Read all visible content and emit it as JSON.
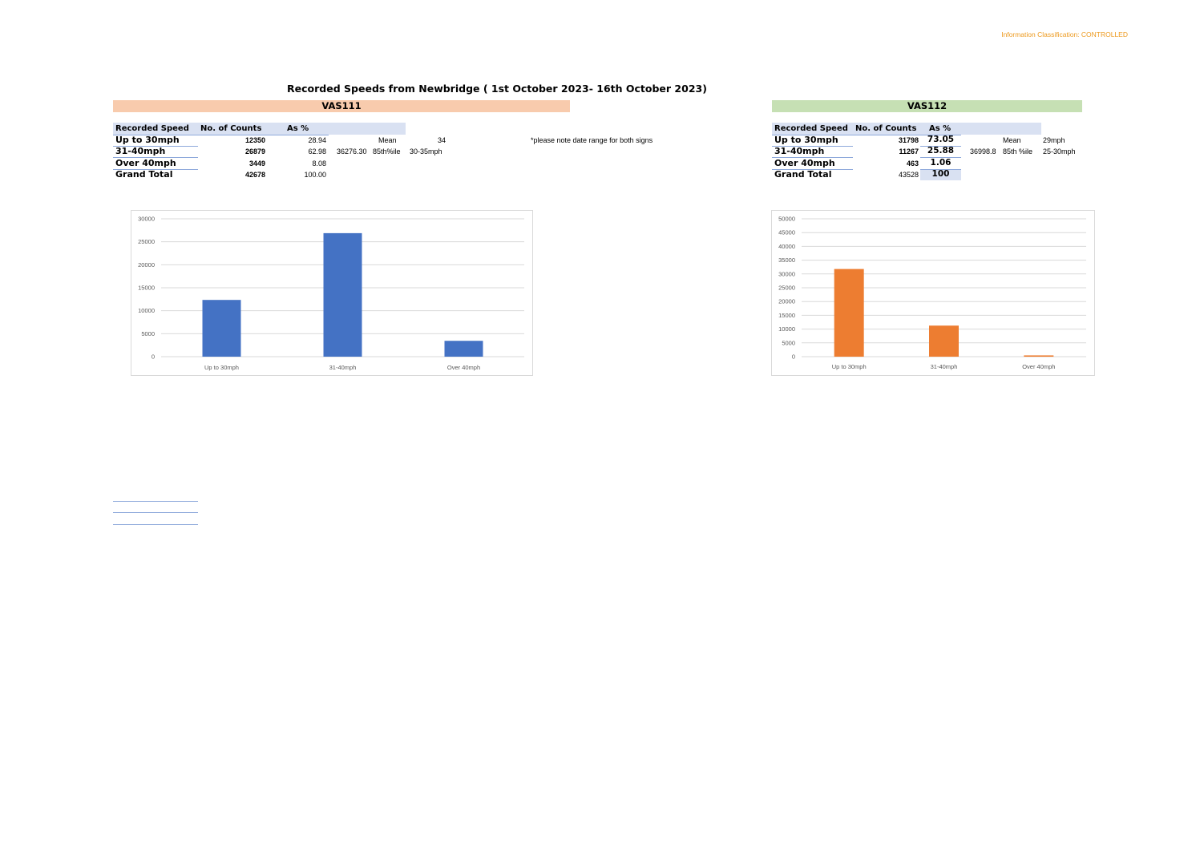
{
  "classification": "Information Classification: CONTROLLED",
  "title": "Recorded Speeds from Newbridge ( 1st October 2023- 16th October  2023)",
  "note": "*please note date range for both signs",
  "vas111": {
    "name": "VAS111",
    "band_color": "#F8CBAD",
    "headers": {
      "speed": "Recorded Speed",
      "counts": "No. of Counts",
      "pct": "As %"
    },
    "rows": [
      {
        "label": "Up to 30mph",
        "count": "12350",
        "pct": "28.94"
      },
      {
        "label": "31-40mph",
        "count": "26879",
        "pct": "62.98"
      },
      {
        "label": "Over 40mph",
        "count": "3449",
        "pct": "8.08"
      }
    ],
    "total": {
      "label": "Grand Total",
      "count": "42678",
      "pct": "100.00"
    },
    "stats": {
      "mean_label": "Mean",
      "mean_value": "34",
      "p85_raw": "36276.30",
      "p85_label": "85th%ile",
      "p85_value": "30-35mph"
    }
  },
  "vas112": {
    "name": "VAS112",
    "band_color": "#C6E0B4",
    "headers": {
      "speed": "Recorded Speed",
      "counts": "No. of Counts",
      "pct": "As %"
    },
    "rows": [
      {
        "label": "Up to 30mph",
        "count": "31798",
        "pct": "73.05"
      },
      {
        "label": "31-40mph",
        "count": "11267",
        "pct": "25.88"
      },
      {
        "label": "Over 40mph",
        "count": "463",
        "pct": "1.06"
      }
    ],
    "total": {
      "label": "Grand Total",
      "count": "43528",
      "pct": "100"
    },
    "stats": {
      "mean_label": "Mean",
      "mean_value": "29mph",
      "p85_raw": "36998.8",
      "p85_label": "85th %ile",
      "p85_value": "25-30mph"
    }
  },
  "chart_data": [
    {
      "type": "bar",
      "categories": [
        "Up to 30mph",
        "31-40mph",
        "Over 40mph"
      ],
      "values": [
        12350,
        26879,
        3449
      ],
      "ylim": [
        0,
        30000
      ],
      "yticks": [
        0,
        5000,
        10000,
        15000,
        20000,
        25000,
        30000
      ],
      "color": "#4472C4",
      "grid": true,
      "title": "",
      "xlabel": "",
      "ylabel": ""
    },
    {
      "type": "bar",
      "categories": [
        "Up to 30mph",
        "31-40mph",
        "Over 40mph"
      ],
      "values": [
        31798,
        11267,
        463
      ],
      "ylim": [
        0,
        50000
      ],
      "yticks": [
        0,
        5000,
        10000,
        15000,
        20000,
        25000,
        30000,
        35000,
        40000,
        45000,
        50000
      ],
      "color": "#ED7D31",
      "grid": true,
      "title": "",
      "xlabel": "",
      "ylabel": ""
    }
  ]
}
